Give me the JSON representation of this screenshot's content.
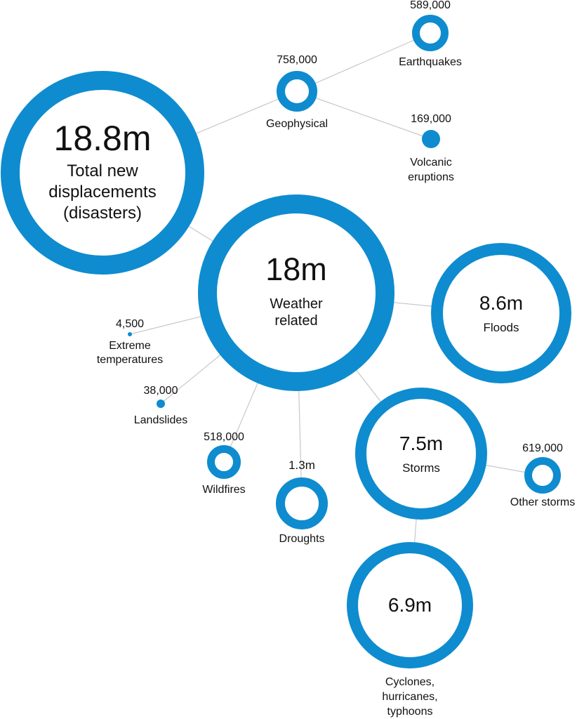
{
  "colors": {
    "ring": "#0e8ccf",
    "line": "#c8c8c8",
    "text": "#111111"
  },
  "nodes": {
    "total": {
      "value": "18.8m",
      "label_lines": [
        "Total new",
        "displacements",
        "(disasters)"
      ]
    },
    "geophysical": {
      "value": "758,000",
      "label_lines": [
        "Geophysical"
      ]
    },
    "earthquakes": {
      "value": "589,000",
      "label_lines": [
        "Earthquakes"
      ]
    },
    "volcanic": {
      "value": "169,000",
      "label_lines": [
        "Volcanic",
        "eruptions"
      ]
    },
    "weather": {
      "value": "18m",
      "label_lines": [
        "Weather",
        "related"
      ]
    },
    "floods": {
      "value": "8.6m",
      "label_lines": [
        "Floods"
      ]
    },
    "extreme": {
      "value": "4,500",
      "label_lines": [
        "Extreme",
        "temperatures"
      ]
    },
    "landslides": {
      "value": "38,000",
      "label_lines": [
        "Landslides"
      ]
    },
    "wildfires": {
      "value": "518,000",
      "label_lines": [
        "Wildfires"
      ]
    },
    "droughts": {
      "value": "1.3m",
      "label_lines": [
        "Droughts"
      ]
    },
    "storms": {
      "value": "7.5m",
      "label_lines": [
        "Storms"
      ]
    },
    "other_storms": {
      "value": "619,000",
      "label_lines": [
        "Other storms"
      ]
    },
    "cyclones": {
      "value": "6.9m",
      "label_lines": [
        "Cyclones,",
        "hurricanes,",
        "typhoons"
      ]
    }
  }
}
